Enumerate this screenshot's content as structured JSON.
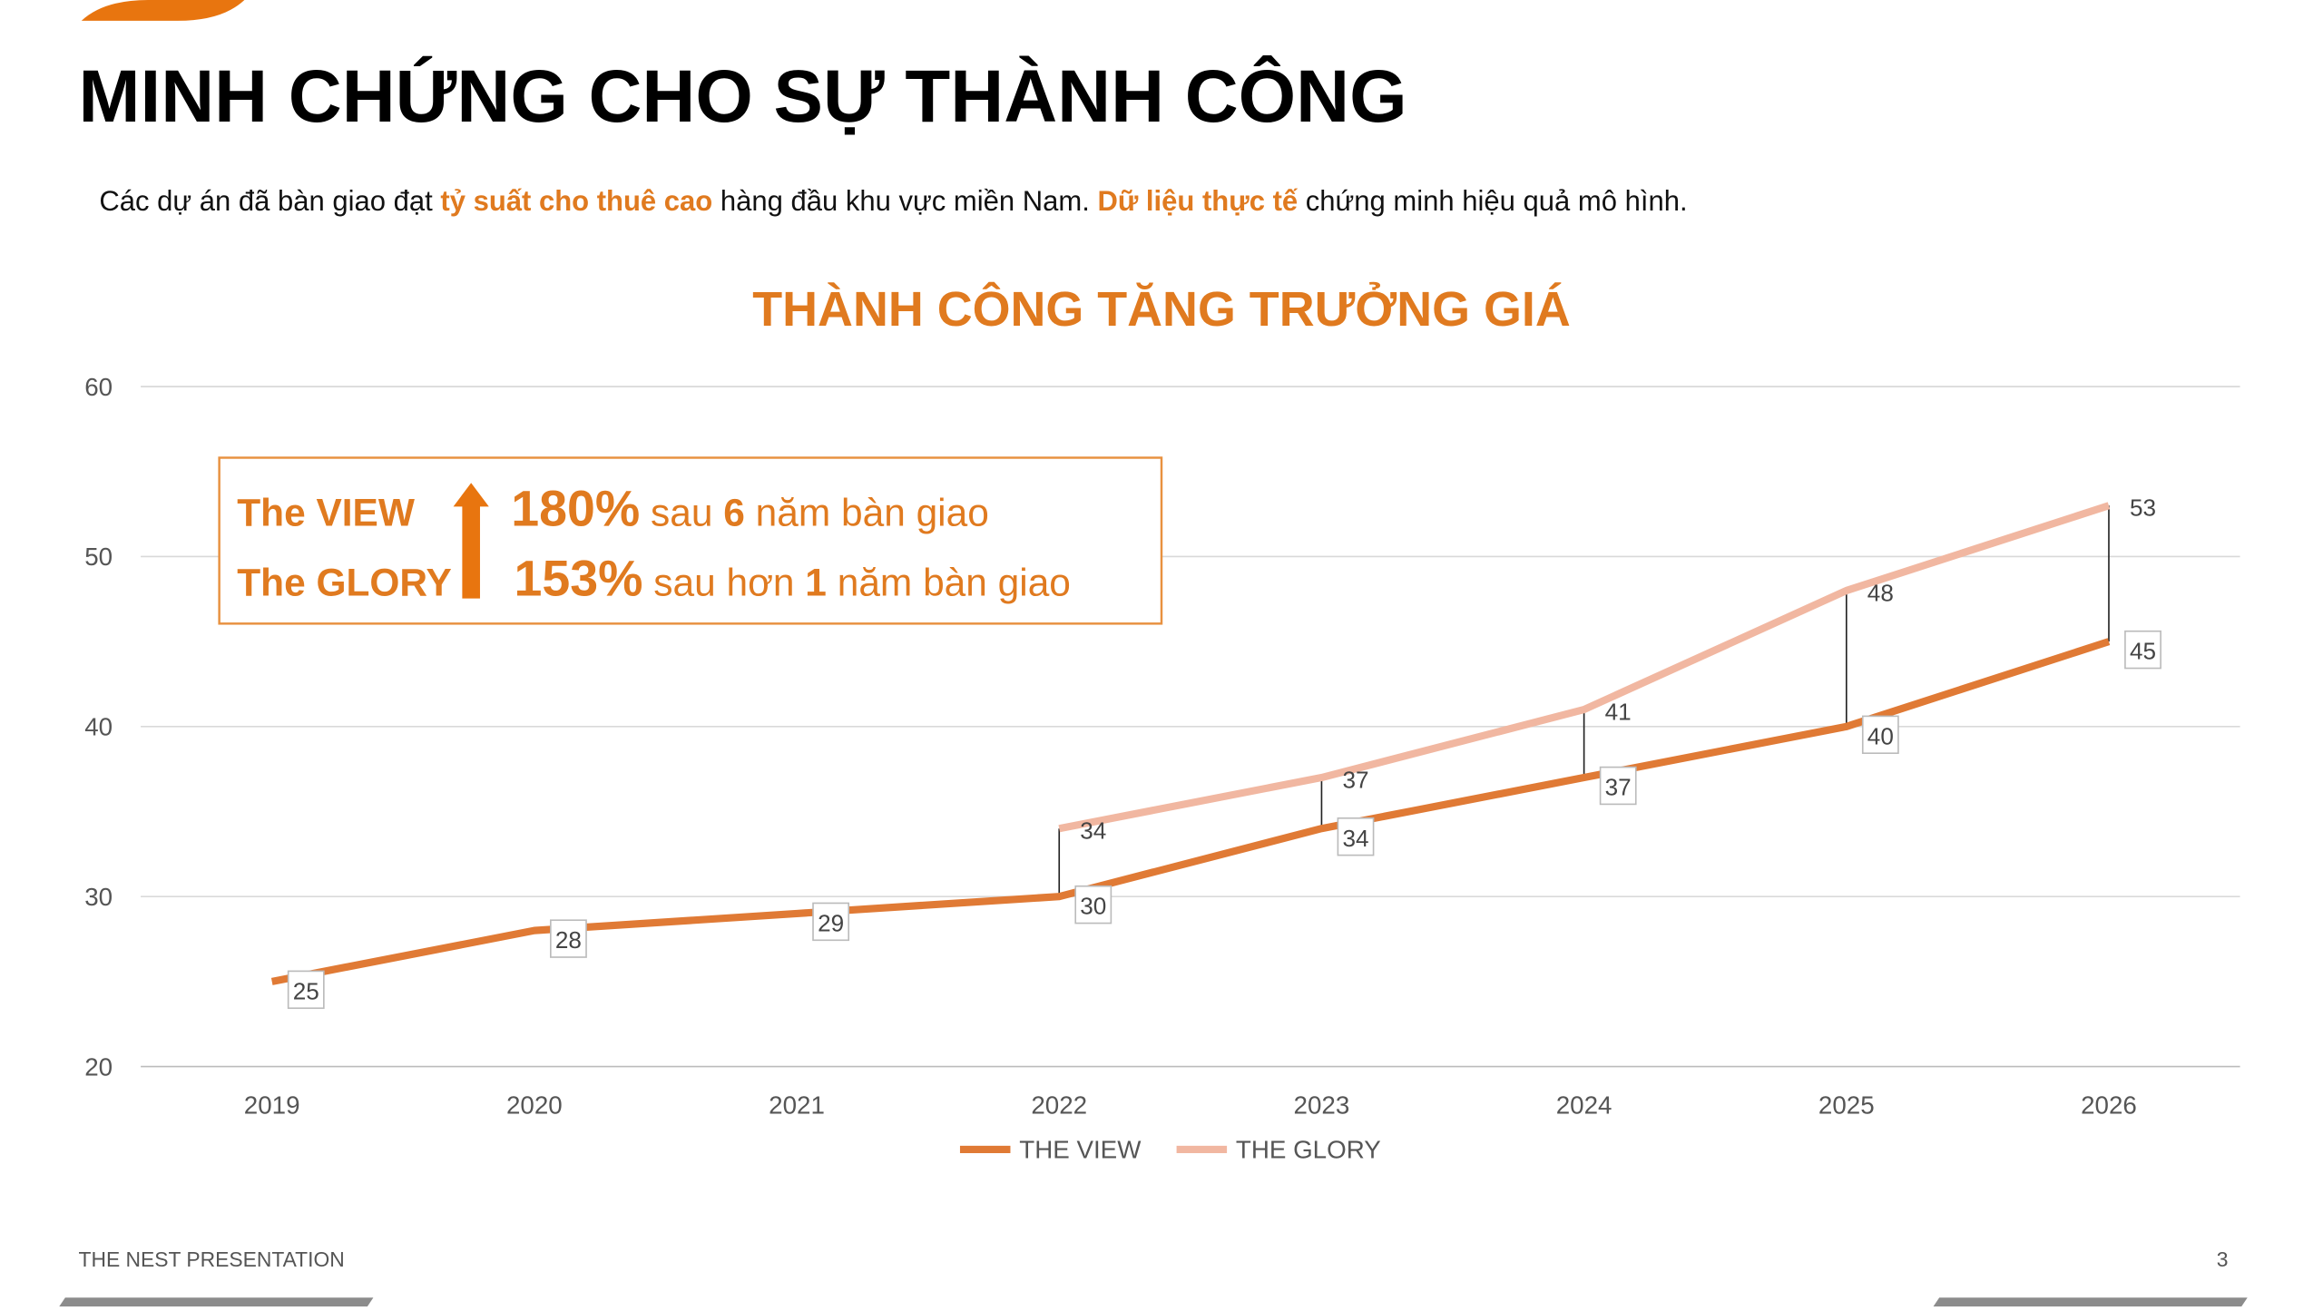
{
  "title": "MINH CHỨNG CHO SỰ THÀNH CÔNG",
  "subtitle": [
    "Các dự án đã bàn giao đạt",
    "tỷ suất cho thuê cao",
    "hàng đầu khu vực miền Nam.",
    "Dữ liệu thực tế",
    "chứng minh hiệu quả mô hình."
  ],
  "highlight": {
    "rows": [
      [
        "The VIEW",
        "180%",
        "sau",
        "6",
        "năm bàn giao"
      ],
      [
        "The GLORY",
        "153%",
        "sau hơn",
        "1",
        "năm bàn giao"
      ]
    ]
  },
  "footer": "THE NEST PRESENTATION",
  "page_number": "3",
  "chart_data": {
    "type": "line",
    "title": "THÀNH CÔNG TĂNG TRƯỞNG GIÁ",
    "categories": [
      "2019",
      "2020",
      "2021",
      "2022",
      "2023",
      "2024",
      "2025",
      "2026"
    ],
    "series": [
      {
        "name": "THE VIEW",
        "color": "#e07a35",
        "values": [
          25,
          28,
          29,
          30,
          34,
          37,
          40,
          45
        ]
      },
      {
        "name": "THE GLORY",
        "color": "#f1b7a1",
        "values": [
          null,
          null,
          null,
          34,
          37,
          41,
          48,
          53
        ]
      }
    ],
    "ylim": [
      20,
      60
    ],
    "yticks": [
      20,
      30,
      40,
      50,
      60
    ],
    "grid": true,
    "legend": "bottom"
  }
}
